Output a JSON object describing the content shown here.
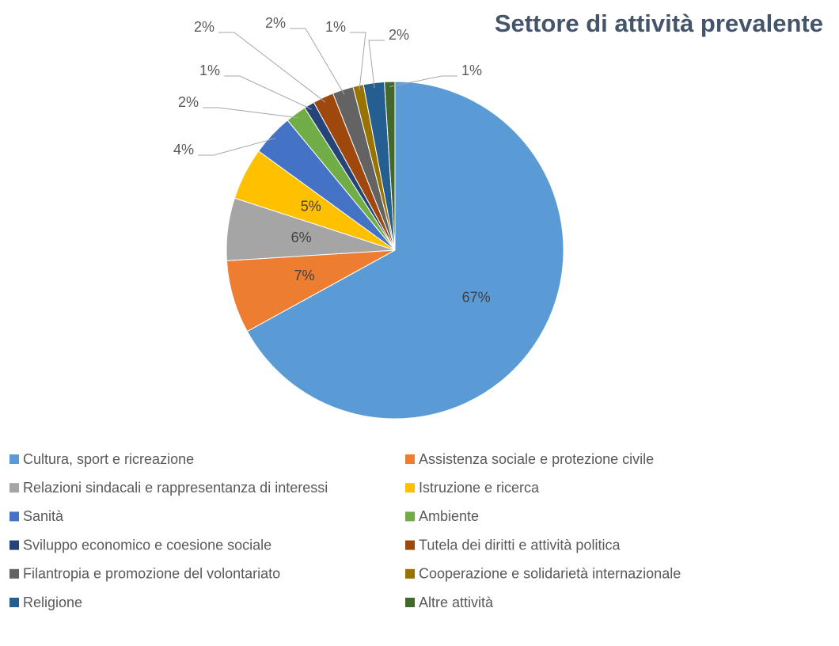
{
  "chart_data": {
    "type": "pie",
    "title": "Settore di attività prevalente",
    "categories": [
      "Cultura, sport e ricreazione",
      "Assistenza sociale e protezione civile",
      "Relazioni sindacali e rappresentanza di interessi",
      "Istruzione e ricerca",
      "Sanità",
      "Ambiente",
      "Sviluppo economico e coesione sociale",
      "Tutela dei diritti e attività politica",
      "Filantropia e promozione del volontariato",
      "Cooperazione e solidarietà internazionale",
      "Religione",
      "Altre attività"
    ],
    "values": [
      67,
      7,
      6,
      5,
      4,
      2,
      1,
      2,
      2,
      1,
      2,
      1
    ],
    "value_labels": [
      "67%",
      "7%",
      "6%",
      "5%",
      "4%",
      "2%",
      "1%",
      "2%",
      "2%",
      "1%",
      "2%",
      "1%"
    ],
    "colors": [
      "#5b9bd5",
      "#ed7d31",
      "#a5a5a5",
      "#ffc000",
      "#4472c4",
      "#70ad47",
      "#264478",
      "#9e480e",
      "#636363",
      "#997300",
      "#255e91",
      "#43682b"
    ],
    "legend": "bottom"
  }
}
